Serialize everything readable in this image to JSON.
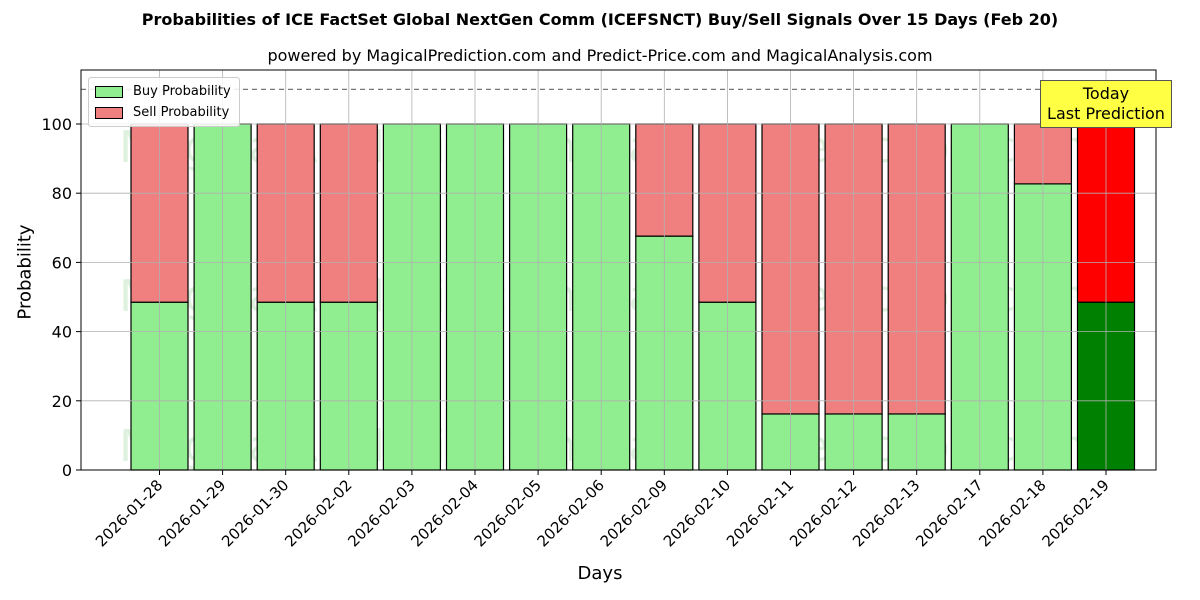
{
  "title": "Probabilities of ICE FactSet Global NextGen Comm (ICEFSNCT) Buy/Sell Signals Over 15 Days (Feb 20)",
  "subtitle": "powered by MagicalPrediction.com and Predict-Price.com and MagicalAnalysis.com",
  "legend": {
    "buy": "Buy Probability",
    "sell": "Sell Probability"
  },
  "annotation": {
    "line1": "Today",
    "line2": "Last Prediction"
  },
  "watermarks": [
    "MagicalAnalysis.com",
    "MagicalPrediction.com"
  ],
  "colors": {
    "buy": "#90ee90",
    "sell": "#f08080",
    "buy_today": "#008000",
    "sell_today": "#ff0000",
    "annotation_bg": "#ffff44"
  },
  "chart_data": {
    "type": "bar",
    "stacked": true,
    "title": "Probabilities of ICE FactSet Global NextGen Comm (ICEFSNCT) Buy/Sell Signals Over 15 Days (Feb 20)",
    "subtitle": "powered by MagicalPrediction.com and Predict-Price.com and MagicalAnalysis.com",
    "xlabel": "Days",
    "ylabel": "Probability",
    "ylim": [
      0,
      115
    ],
    "yticks": [
      0,
      20,
      40,
      60,
      80,
      100
    ],
    "reference_line": 110,
    "grid": true,
    "legend_position": "upper left",
    "categories": [
      "2026-01-28",
      "2026-01-29",
      "2026-01-30",
      "2026-02-02",
      "2026-02-03",
      "2026-02-04",
      "2026-02-05",
      "2026-02-06",
      "2026-02-09",
      "2026-02-10",
      "2026-02-11",
      "2026-02-12",
      "2026-02-13",
      "2026-02-17",
      "2026-02-18",
      "2026-02-19"
    ],
    "series": [
      {
        "name": "Buy Probability",
        "values": [
          48.5,
          100,
          48.5,
          48.5,
          100,
          100,
          100,
          100,
          67.6,
          48.5,
          16.2,
          16.2,
          16.2,
          100,
          82.7,
          48.5
        ]
      },
      {
        "name": "Sell Probability",
        "values": [
          51.5,
          0,
          51.5,
          51.5,
          0,
          0,
          0,
          0,
          32.4,
          51.5,
          83.8,
          83.8,
          83.8,
          0,
          17.3,
          51.5
        ]
      }
    ],
    "annotations": [
      {
        "text": "Today\nLast Prediction",
        "x": "2026-02-19",
        "y": 110
      }
    ]
  }
}
